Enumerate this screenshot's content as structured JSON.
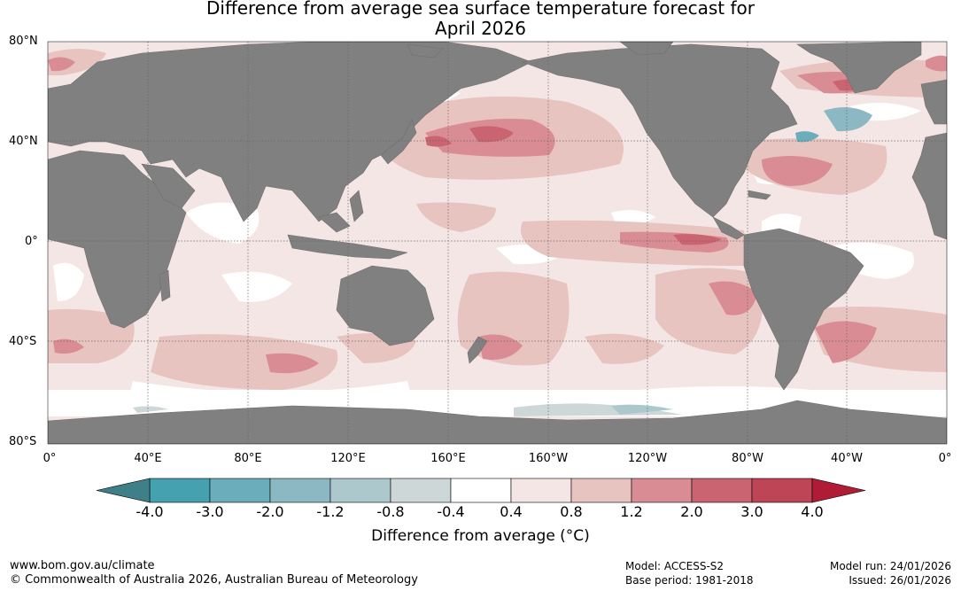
{
  "title_line1": "Difference from average sea surface temperature forecast for",
  "title_line2": "April 2026",
  "lat_labels": [
    "80°N",
    "40°N",
    "0°",
    "40°S",
    "80°S"
  ],
  "lon_labels": [
    "0°",
    "40°E",
    "80°E",
    "120°E",
    "160°E",
    "160°W",
    "120°W",
    "80°W",
    "40°W",
    "0°"
  ],
  "colorbar": {
    "label": "Difference from average (°C)",
    "ticks": [
      "-4.0",
      "-3.0",
      "-2.0",
      "-1.2",
      "-0.8",
      "-0.4",
      "0.4",
      "0.8",
      "1.2",
      "2.0",
      "3.0",
      "4.0"
    ],
    "colors": [
      "#45a0b0",
      "#6badba",
      "#8cb8c4",
      "#acc8cc",
      "#cdd7d8",
      "#ffffff",
      "#f4e6e4",
      "#e8c4c1",
      "#d98c93",
      "#c96470",
      "#bd4555"
    ],
    "extend_low": "#3f8088",
    "extend_high": "#b01b36"
  },
  "colors": {
    "land": "#808080",
    "ocean_base": "#f4e6e4",
    "grid": "#666666"
  },
  "footer": {
    "url": "www.bom.gov.au/climate",
    "copyright": "© Commonwealth of Australia 2026, Australian Bureau of Meteorology",
    "model": "Model: ACCESS-S2",
    "base_period": "Base period: 1981-2018",
    "model_run": "Model run: 24/01/2026",
    "issued": "Issued: 26/01/2026"
  }
}
